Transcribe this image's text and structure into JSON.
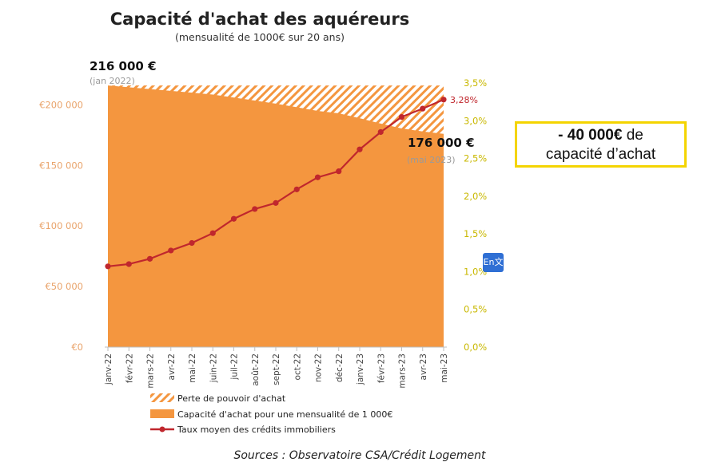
{
  "chart_data": {
    "type": "area",
    "title": "Capacité d'achat des aquéreurs",
    "subtitle": "(mensualité de 1000€ sur 20 ans)",
    "categories": [
      "janv-22",
      "févr-22",
      "mars-22",
      "avr-22",
      "mai-22",
      "juin-22",
      "juil-22",
      "août-22",
      "sept-22",
      "oct-22",
      "nov-22",
      "déc-22",
      "janv-23",
      "févr-23",
      "mars-23",
      "avr-23",
      "mai-23"
    ],
    "left_axis": {
      "ylim": [
        0,
        220000
      ],
      "ticks": [
        0,
        50000,
        100000,
        150000,
        200000
      ],
      "tick_labels": [
        "€0",
        "€50 000",
        "€100 000",
        "€150 000",
        "€200 000"
      ]
    },
    "right_axis": {
      "ylim": [
        0,
        3.5
      ],
      "ticks": [
        0,
        0.5,
        1,
        1.5,
        2,
        2.5,
        3,
        3.5
      ],
      "tick_labels": [
        "0,0%",
        "0,5%",
        "1,0%",
        "1,5%",
        "2,0%",
        "2,5%",
        "3,0%",
        "3,5%"
      ]
    },
    "series": [
      {
        "name": "Perte de pouvoir d'achat",
        "type": "hatched-area",
        "axis": "left",
        "values": [
          216000,
          216000,
          216000,
          216000,
          216000,
          216000,
          216000,
          216000,
          216000,
          216000,
          216000,
          216000,
          216000,
          216000,
          216000,
          216000,
          216000
        ]
      },
      {
        "name": "Capacité d'achat pour une mensualité de 1 000€",
        "type": "area",
        "axis": "left",
        "values": [
          216000,
          214500,
          213000,
          211500,
          210000,
          208500,
          206000,
          203500,
          201000,
          198000,
          195000,
          193000,
          189000,
          184500,
          180500,
          178000,
          176000
        ]
      },
      {
        "name": "Taux moyen des crédits immobiliers",
        "type": "line",
        "axis": "right",
        "values": [
          1.07,
          1.1,
          1.17,
          1.28,
          1.38,
          1.51,
          1.7,
          1.83,
          1.91,
          2.09,
          2.25,
          2.33,
          2.62,
          2.85,
          3.05,
          3.16,
          3.28
        ]
      }
    ],
    "annotations": {
      "start_value": "216 000 €",
      "start_date": "(jan 2022)",
      "end_value": "176 000 €",
      "end_date": "(mai 2023)",
      "last_rate": "3,28%"
    },
    "colors": {
      "area": "#f4963f",
      "hatch": "#f4963f",
      "line": "#c0272d",
      "left_ticks": "#e9a36a",
      "right_ticks": "#c9b800",
      "callout_border": "#f4d400"
    }
  },
  "callout": {
    "strong": "- 40 000€",
    "rest1": " de",
    "rest2": "capacité d’achat"
  },
  "source": "Sources : Observatoire CSA/Crédit Logement",
  "icon": {
    "name": "translate-icon",
    "text": "En文"
  }
}
